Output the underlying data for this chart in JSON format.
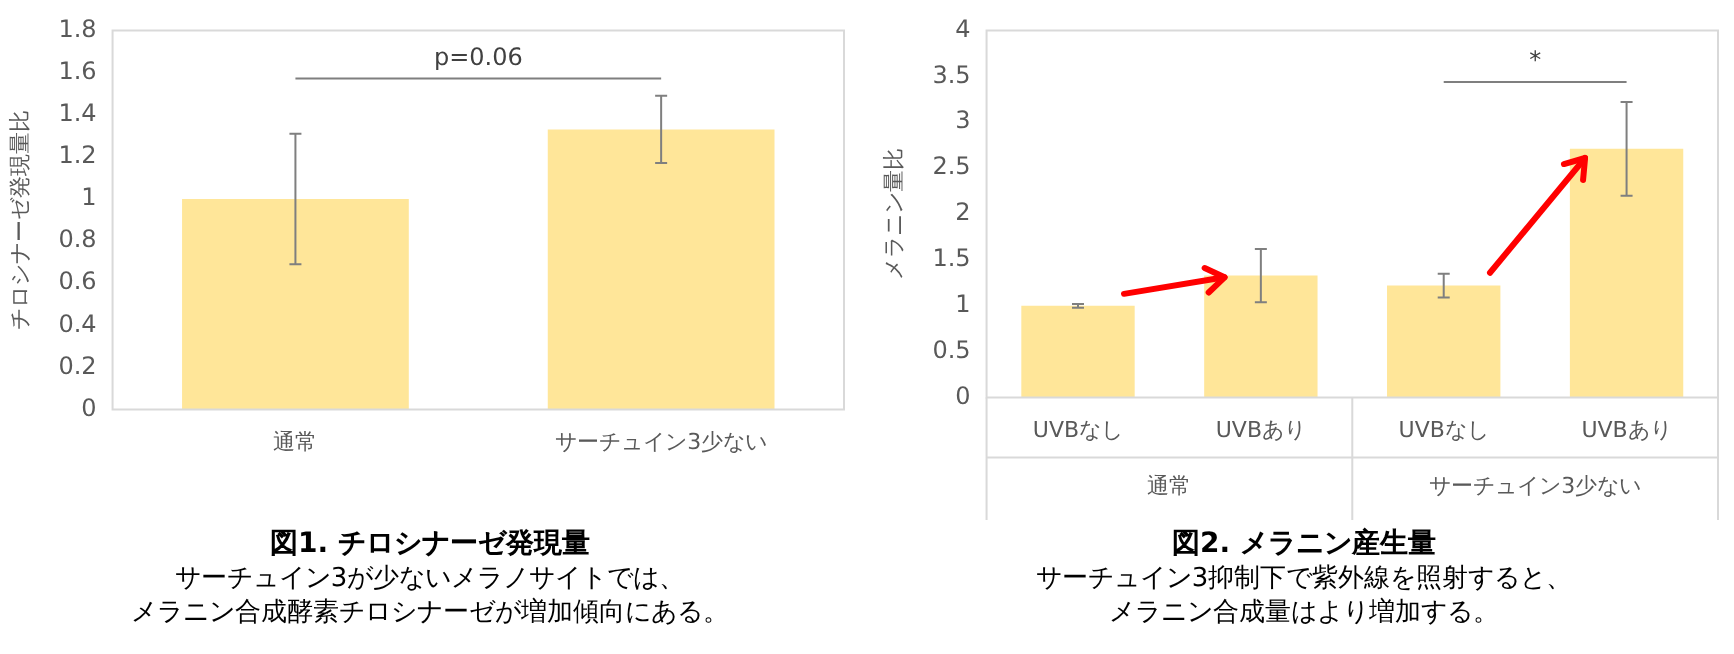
{
  "chart_data": [
    {
      "type": "bar",
      "title": "図1. チロシナーゼ発現量",
      "subtitle": "サーチュイン3が少ないメラノサイトでは、メラニン合成酵素チロシナーゼが増加傾向にある。",
      "ylabel": "チロシナーゼ発現量比",
      "categories": [
        "通常",
        "サーチュイン3少ない"
      ],
      "values": [
        1.0,
        1.33
      ],
      "errors": [
        0.31,
        0.16
      ],
      "color": "#ffe699",
      "ylim": [
        0,
        1.8
      ],
      "yticks": [
        0,
        0.2,
        0.4,
        0.6,
        0.8,
        1,
        1.2,
        1.4,
        1.6,
        1.8
      ],
      "grid": false,
      "legend": false,
      "annotations": [
        "p=0.06"
      ]
    },
    {
      "type": "bar",
      "title": "図2. メラニン産生量",
      "subtitle": "サーチュイン3抑制下で紫外線を照射すると、メラニン合成量はより増加する。",
      "ylabel": "メラニン量比",
      "categories": [
        "UVBなし",
        "UVBあり",
        "UVBなし",
        "UVBあり"
      ],
      "values": [
        1.0,
        1.33,
        1.22,
        2.71
      ],
      "errors": [
        0.02,
        0.29,
        0.13,
        0.51
      ],
      "color": "#ffe699",
      "ylim": [
        0,
        4
      ],
      "yticks": [
        0,
        0.5,
        1,
        1.5,
        2,
        2.5,
        3,
        3.5,
        4
      ],
      "grid": false,
      "legend": false,
      "annotations": [
        "*",
        "通常",
        "サーチュイン3少ない"
      ]
    }
  ]
}
